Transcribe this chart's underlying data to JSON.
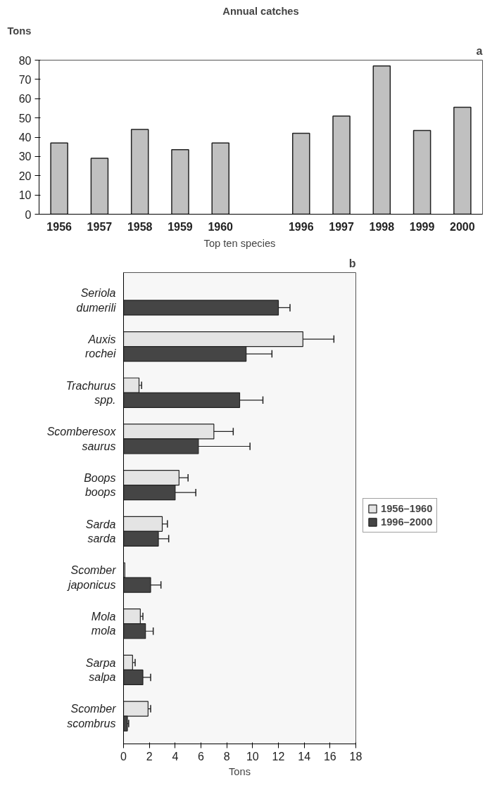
{
  "chart_data": [
    {
      "type": "bar",
      "title": "Annual catches",
      "ylabel": "Tons",
      "annotations": [
        "a"
      ],
      "categories": [
        "1956",
        "1957",
        "1958",
        "1959",
        "1960",
        null,
        "1996",
        "1997",
        "1998",
        "1999",
        "2000"
      ],
      "values": [
        37,
        29,
        44,
        33.5,
        37,
        null,
        42,
        51,
        77,
        43.5,
        55.5
      ],
      "color": "#c0c0c0",
      "ylim": [
        0,
        80
      ],
      "yticks": [
        0,
        10,
        20,
        30,
        40,
        50,
        60,
        70,
        80
      ],
      "grid": false
    },
    {
      "type": "bar",
      "orientation": "horizontal",
      "title": "Top ten species",
      "xlabel": "Tons",
      "annotations": [
        "b"
      ],
      "categories": [
        "Seriola dumerili",
        "Auxis rochei",
        "Trachurus spp.",
        "Scomberesox saurus",
        "Boops boops",
        "Sarda sarda",
        "Scomber japonicus",
        "Mola mola",
        "Sarpa salpa",
        "Scomber scombrus"
      ],
      "series": [
        {
          "name": "1956–1960",
          "color": "#e4e4e4",
          "values": [
            null,
            13.9,
            1.2,
            7,
            4.3,
            3.0,
            0.1,
            1.3,
            0.7,
            1.9
          ],
          "errors": [
            null,
            2.4,
            0.2,
            1.5,
            0.7,
            0.4,
            null,
            0.2,
            0.2,
            0.2
          ]
        },
        {
          "name": "1996–2000",
          "color": "#454545",
          "values": [
            12,
            9.5,
            9,
            5.8,
            4.0,
            2.7,
            2.1,
            1.7,
            1.5,
            0.3
          ],
          "errors": [
            0.9,
            2,
            1.8,
            4,
            1.6,
            0.8,
            0.8,
            0.6,
            0.6,
            0.1
          ]
        }
      ],
      "xlim": [
        0,
        18
      ],
      "xticks": [
        0,
        2,
        4,
        6,
        8,
        10,
        12,
        14,
        16,
        18
      ],
      "grid": false,
      "legend": "right"
    }
  ]
}
